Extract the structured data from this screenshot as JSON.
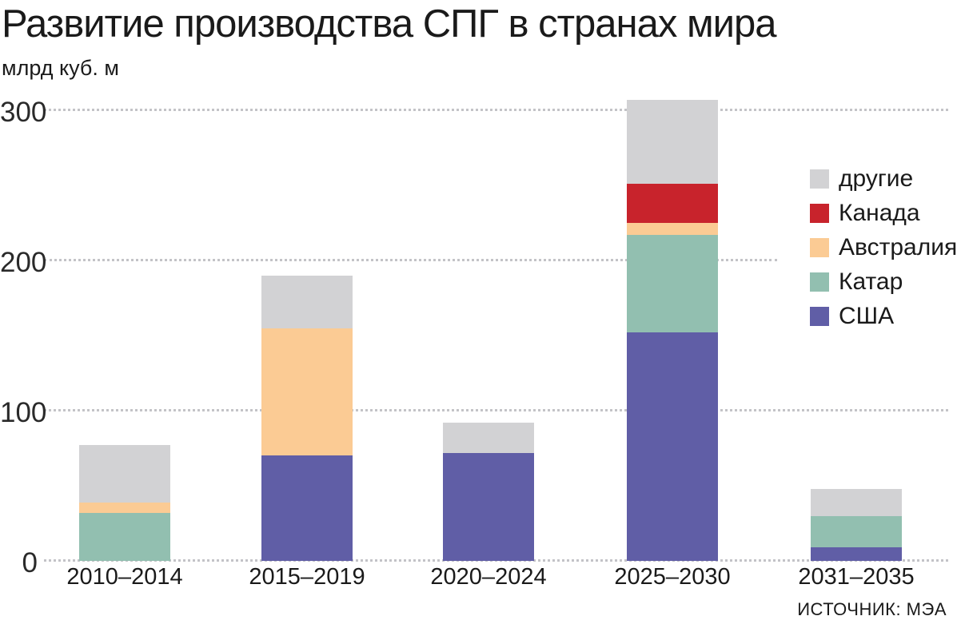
{
  "title": "Развитие производства СПГ в странах мира",
  "subtitle": "млрд куб. м",
  "source": "ИСТОЧНИК: МЭА",
  "colors": {
    "background": "#ffffff",
    "text": "#1a1a1a",
    "gridline": "#c3c3c7"
  },
  "chart_data": {
    "type": "bar",
    "stacked": true,
    "title": "Развитие производства СПГ в странах мира",
    "ylabel": "млрд куб. м",
    "categories": [
      "2010–2014",
      "2015–2019",
      "2020–2024",
      "2025–2030",
      "2031–2035"
    ],
    "series": [
      {
        "name": "США",
        "key": "usa",
        "color": "#605ea6",
        "values": [
          0,
          70,
          72,
          152,
          9
        ]
      },
      {
        "name": "Катар",
        "key": "qatar",
        "color": "#92bfb0",
        "values": [
          32,
          0,
          0,
          65,
          21
        ]
      },
      {
        "name": "Австралия",
        "key": "australia",
        "color": "#fbcb94",
        "values": [
          7,
          85,
          0,
          8,
          0
        ]
      },
      {
        "name": "Канада",
        "key": "canada",
        "color": "#c8232c",
        "values": [
          0,
          0,
          0,
          26,
          0
        ]
      },
      {
        "name": "другие",
        "key": "other",
        "color": "#d2d2d4",
        "values": [
          38,
          35,
          20,
          56,
          18
        ]
      }
    ],
    "totals": [
      77,
      190,
      92,
      307,
      48
    ],
    "legend_order": [
      "other",
      "canada",
      "australia",
      "qatar",
      "usa"
    ],
    "legend_position": "right",
    "yticks": [
      0,
      100,
      200,
      300
    ],
    "ylim": [
      0,
      320
    ],
    "grid": "dotted-horizontal",
    "source": "ИСТОЧНИК: МЭА"
  }
}
